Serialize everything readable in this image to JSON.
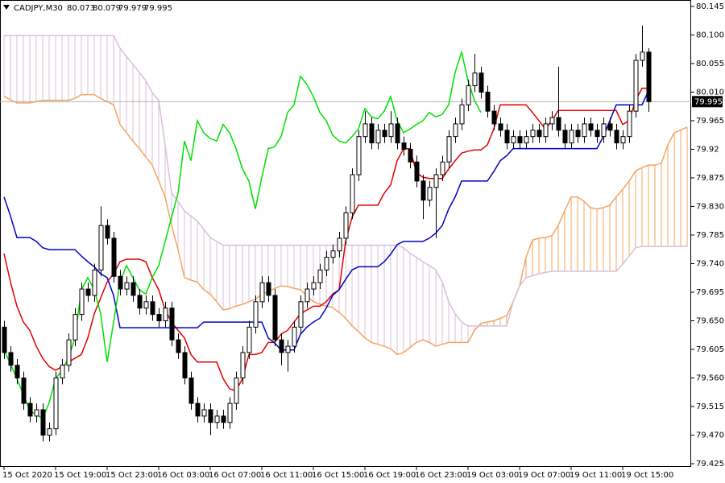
{
  "chart_data": {
    "type": "candlestick",
    "symbol": "CADJPY,M30",
    "ylim": [
      79.42,
      80.155
    ],
    "yticks": [
      80.145,
      {
        "value": 80.1,
        "label": "80.100"
      },
      80.055,
      {
        "value": 80.01,
        "label": "80.010"
      },
      79.965,
      79.92,
      79.875,
      {
        "value": 79.83,
        "label": "79.830"
      },
      79.785,
      {
        "value": 79.74,
        "label": "79.740"
      },
      79.695,
      {
        "value": 79.65,
        "label": "79.650"
      },
      79.605,
      {
        "value": 79.56,
        "label": "79.560"
      },
      79.515,
      {
        "value": 79.47,
        "label": "79.470"
      },
      79.425
    ],
    "categories": [
      "15 Oct 2020",
      null,
      null,
      null,
      null,
      null,
      null,
      null,
      "15 Oct 19:00",
      null,
      null,
      null,
      null,
      null,
      null,
      null,
      "15 Oct 23:00",
      null,
      null,
      null,
      null,
      null,
      null,
      null,
      "16 Oct 03:00",
      null,
      null,
      null,
      null,
      null,
      null,
      null,
      "16 Oct 07:00",
      null,
      null,
      null,
      null,
      null,
      null,
      null,
      "16 Oct 11:00",
      null,
      null,
      null,
      null,
      null,
      null,
      null,
      "16 Oct 15:00",
      null,
      null,
      null,
      null,
      null,
      null,
      null,
      "16 Oct 19:00",
      null,
      null,
      null,
      null,
      null,
      null,
      null,
      "16 Oct 23:00",
      null,
      null,
      null,
      null,
      null,
      null,
      null,
      "19 Oct 03:00",
      null,
      null,
      null,
      null,
      null,
      null,
      null,
      "19 Oct 07:00",
      null,
      null,
      null,
      null,
      null,
      null,
      null,
      "19 Oct 11:00",
      null,
      null,
      null,
      null,
      null,
      null,
      null,
      "19 Oct 15:00",
      null,
      null,
      null,
      null,
      null,
      null,
      null,
      null,
      null,
      null
    ],
    "candle_colors": {
      "up": "#ffffff",
      "down": "#000000",
      "outline": "#000000"
    },
    "last_price_line": true,
    "candles": [
      [
        79.64,
        79.65,
        79.59,
        79.6
      ],
      [
        79.6,
        79.61,
        79.57,
        79.58
      ],
      [
        79.58,
        79.59,
        79.55,
        79.56
      ],
      [
        79.56,
        79.57,
        79.51,
        79.52
      ],
      [
        79.52,
        79.53,
        79.49,
        79.5
      ],
      [
        79.5,
        79.52,
        79.49,
        79.51
      ],
      [
        79.51,
        79.52,
        79.46,
        79.47
      ],
      [
        79.47,
        79.49,
        79.46,
        79.48
      ],
      [
        79.48,
        79.57,
        79.47,
        79.56
      ],
      [
        79.56,
        79.59,
        79.55,
        79.58
      ],
      [
        79.58,
        79.63,
        79.57,
        79.62
      ],
      [
        79.62,
        79.67,
        79.61,
        79.66
      ],
      [
        79.66,
        79.71,
        79.65,
        79.7
      ],
      [
        79.7,
        79.71,
        79.68,
        79.69
      ],
      [
        79.69,
        79.74,
        79.68,
        79.73
      ],
      [
        79.73,
        79.83,
        79.72,
        79.8
      ],
      [
        79.8,
        79.81,
        79.77,
        79.78
      ],
      [
        79.78,
        79.79,
        79.71,
        79.72
      ],
      [
        79.72,
        79.73,
        79.69,
        79.7
      ],
      [
        79.7,
        79.72,
        79.69,
        79.71
      ],
      [
        79.71,
        79.72,
        79.68,
        79.69
      ],
      [
        79.69,
        79.7,
        79.66,
        79.67
      ],
      [
        79.67,
        79.69,
        79.66,
        79.68
      ],
      [
        79.68,
        79.69,
        79.65,
        79.66
      ],
      [
        79.66,
        79.67,
        79.64,
        79.65
      ],
      [
        79.65,
        79.68,
        79.64,
        79.67
      ],
      [
        79.67,
        79.68,
        79.61,
        79.62
      ],
      [
        79.62,
        79.63,
        79.59,
        79.6
      ],
      [
        79.6,
        79.61,
        79.55,
        79.56
      ],
      [
        79.56,
        79.57,
        79.51,
        79.52
      ],
      [
        79.52,
        79.53,
        79.49,
        79.5
      ],
      [
        79.5,
        79.52,
        79.49,
        79.51
      ],
      [
        79.51,
        79.52,
        79.47,
        79.49
      ],
      [
        79.49,
        79.51,
        79.48,
        79.5
      ],
      [
        79.5,
        79.51,
        79.48,
        79.49
      ],
      [
        79.49,
        79.53,
        79.48,
        79.52
      ],
      [
        79.52,
        79.57,
        79.51,
        79.56
      ],
      [
        79.56,
        79.61,
        79.55,
        79.6
      ],
      [
        79.6,
        79.65,
        79.59,
        79.64
      ],
      [
        79.64,
        79.69,
        79.63,
        79.68
      ],
      [
        79.68,
        79.72,
        79.67,
        79.71
      ],
      [
        79.71,
        79.72,
        79.68,
        79.69
      ],
      [
        79.69,
        79.7,
        79.61,
        79.62
      ],
      [
        79.62,
        79.63,
        79.58,
        79.6
      ],
      [
        79.6,
        79.62,
        79.57,
        79.61
      ],
      [
        79.61,
        79.65,
        79.6,
        79.64
      ],
      [
        79.64,
        79.69,
        79.63,
        79.68
      ],
      [
        79.68,
        79.71,
        79.67,
        79.7
      ],
      [
        79.7,
        79.72,
        79.69,
        79.71
      ],
      [
        79.71,
        79.74,
        79.7,
        79.73
      ],
      [
        79.73,
        79.76,
        79.72,
        79.75
      ],
      [
        79.75,
        79.77,
        79.74,
        79.76
      ],
      [
        79.76,
        79.79,
        79.75,
        79.78
      ],
      [
        79.78,
        79.83,
        79.77,
        79.82
      ],
      [
        79.82,
        79.89,
        79.81,
        79.88
      ],
      [
        79.88,
        79.95,
        79.87,
        79.94
      ],
      [
        79.94,
        79.98,
        79.93,
        79.96
      ],
      [
        79.96,
        79.97,
        79.92,
        79.93
      ],
      [
        79.93,
        79.96,
        79.92,
        79.95
      ],
      [
        79.95,
        79.96,
        79.93,
        79.94
      ],
      [
        79.94,
        79.98,
        79.93,
        79.96
      ],
      [
        79.96,
        79.97,
        79.92,
        79.93
      ],
      [
        79.93,
        79.94,
        79.91,
        79.92
      ],
      [
        79.92,
        79.93,
        79.89,
        79.9
      ],
      [
        79.9,
        79.91,
        79.86,
        79.87
      ],
      [
        79.87,
        79.88,
        79.81,
        79.84
      ],
      [
        79.84,
        79.87,
        79.83,
        79.86
      ],
      [
        79.86,
        79.89,
        79.78,
        79.88
      ],
      [
        79.88,
        79.91,
        79.87,
        79.9
      ],
      [
        79.9,
        79.95,
        79.89,
        79.94
      ],
      [
        79.94,
        79.97,
        79.93,
        79.96
      ],
      [
        79.96,
        80.0,
        79.95,
        79.99
      ],
      [
        79.99,
        80.03,
        79.98,
        80.02
      ],
      [
        80.02,
        80.07,
        80.01,
        80.04
      ],
      [
        80.04,
        80.05,
        80.0,
        80.01
      ],
      [
        80.01,
        80.02,
        79.97,
        79.98
      ],
      [
        79.98,
        79.99,
        79.95,
        79.96
      ],
      [
        79.96,
        79.97,
        79.94,
        79.95
      ],
      [
        79.95,
        79.96,
        79.92,
        79.93
      ],
      [
        79.93,
        79.95,
        79.92,
        79.94
      ],
      [
        79.94,
        79.95,
        79.92,
        79.93
      ],
      [
        79.93,
        79.95,
        79.92,
        79.94
      ],
      [
        79.94,
        79.96,
        79.93,
        79.95
      ],
      [
        79.95,
        79.96,
        79.93,
        79.94
      ],
      [
        79.94,
        79.97,
        79.93,
        79.96
      ],
      [
        79.96,
        79.98,
        79.95,
        79.97
      ],
      [
        79.97,
        80.05,
        79.94,
        79.95
      ],
      [
        79.95,
        79.96,
        79.92,
        79.93
      ],
      [
        79.93,
        79.96,
        79.92,
        79.95
      ],
      [
        79.95,
        79.96,
        79.93,
        79.94
      ],
      [
        79.94,
        79.97,
        79.93,
        79.96
      ],
      [
        79.96,
        79.97,
        79.94,
        79.95
      ],
      [
        79.95,
        79.96,
        79.93,
        79.94
      ],
      [
        79.94,
        79.97,
        79.93,
        79.96
      ],
      [
        79.96,
        79.97,
        79.94,
        79.95
      ],
      [
        79.95,
        79.96,
        79.92,
        79.93
      ],
      [
        79.93,
        79.95,
        79.92,
        79.94
      ],
      [
        79.94,
        79.99,
        79.93,
        79.98
      ],
      [
        79.98,
        80.07,
        79.97,
        80.06
      ],
      [
        80.06,
        80.115,
        80.05,
        80.073
      ],
      [
        80.073,
        80.079,
        79.979,
        79.995
      ],
      null,
      null,
      null,
      null,
      null,
      null
    ],
    "lines": [
      {
        "color": "#e00000",
        "values": [
          79.756,
          79.711,
          79.673,
          79.648,
          79.635,
          79.61,
          79.591,
          79.578,
          79.572,
          79.578,
          79.585,
          79.591,
          79.597,
          79.623,
          79.661,
          79.686,
          79.711,
          79.724,
          79.743,
          79.747,
          79.747,
          79.747,
          79.743,
          79.718,
          79.699,
          79.667,
          79.648,
          79.635,
          79.623,
          79.597,
          79.585,
          79.585,
          79.585,
          79.585,
          79.559,
          79.543,
          79.54,
          79.559,
          79.597,
          79.597,
          79.6,
          79.616,
          79.616,
          79.629,
          79.635,
          79.648,
          79.661,
          79.667,
          79.673,
          79.673,
          79.68,
          79.692,
          79.699,
          79.775,
          79.813,
          79.832,
          79.832,
          79.832,
          79.832,
          79.851,
          79.864,
          79.902,
          79.921,
          79.921,
          79.883,
          79.876,
          79.874,
          79.874,
          79.874,
          79.889,
          79.902,
          79.914,
          79.917,
          79.919,
          79.919,
          79.927,
          79.952,
          79.99,
          79.99,
          79.99,
          79.99,
          79.99,
          79.978,
          79.965,
          79.952,
          79.965,
          79.981,
          79.981,
          79.981,
          79.981,
          79.981,
          79.981,
          79.981,
          79.981,
          79.981,
          79.981,
          79.959,
          79.965,
          79.997,
          80.016,
          80.016,
          null,
          null,
          null,
          null,
          null,
          null
        ]
      },
      {
        "color": "#0000c8",
        "values": [
          79.845,
          79.815,
          79.781,
          79.781,
          79.781,
          79.775,
          79.765,
          79.762,
          79.762,
          79.762,
          79.762,
          79.762,
          79.752,
          79.743,
          79.735,
          79.724,
          79.718,
          79.69,
          79.639,
          79.639,
          79.639,
          79.639,
          79.639,
          79.639,
          79.639,
          79.639,
          79.639,
          79.639,
          79.639,
          79.639,
          79.639,
          79.648,
          79.648,
          79.648,
          79.648,
          79.648,
          79.648,
          79.648,
          79.648,
          79.648,
          79.648,
          79.623,
          79.615,
          79.604,
          79.604,
          79.604,
          79.629,
          79.64,
          79.648,
          79.654,
          79.67,
          79.69,
          79.699,
          79.715,
          79.73,
          79.735,
          79.735,
          79.735,
          79.735,
          79.743,
          79.755,
          79.77,
          79.775,
          79.775,
          79.775,
          79.775,
          79.78,
          79.788,
          79.8,
          79.826,
          79.845,
          79.87,
          79.87,
          79.87,
          79.87,
          79.87,
          79.885,
          79.902,
          79.91,
          79.921,
          79.921,
          79.921,
          79.921,
          79.921,
          79.921,
          79.921,
          79.921,
          79.921,
          79.921,
          79.921,
          79.921,
          79.921,
          79.921,
          79.94,
          79.965,
          79.99,
          79.99,
          79.99,
          79.99,
          79.99,
          80.012,
          null,
          null,
          null,
          null,
          null,
          null
        ]
      },
      {
        "color": "#00e000",
        "values": [
          79.604,
          79.582,
          79.559,
          79.534,
          79.509,
          79.502,
          79.496,
          79.521,
          79.559,
          79.572,
          79.591,
          79.623,
          79.699,
          79.718,
          79.699,
          79.661,
          79.585,
          79.648,
          79.711,
          79.737,
          79.718,
          79.699,
          79.692,
          79.718,
          79.737,
          79.775,
          79.813,
          79.851,
          79.933,
          79.902,
          79.965,
          79.946,
          79.937,
          79.933,
          79.959,
          79.946,
          79.921,
          79.889,
          79.87,
          79.826,
          79.876,
          79.921,
          79.924,
          79.94,
          79.978,
          79.99,
          80.035,
          80.022,
          80.003,
          79.978,
          79.965,
          79.942,
          79.933,
          79.93,
          79.94,
          79.952,
          79.984,
          79.971,
          79.968,
          79.98,
          80.003,
          79.965,
          79.946,
          79.952,
          79.959,
          79.965,
          79.978,
          79.971,
          79.975,
          79.99,
          80.041,
          80.073,
          80.028,
          79.997,
          79.978,
          null,
          null,
          null,
          null,
          null,
          null,
          null,
          null,
          null,
          null,
          null,
          null,
          null,
          null,
          null,
          null,
          null,
          null,
          null,
          null,
          null,
          null,
          null,
          null,
          null,
          null,
          null,
          null,
          null,
          null,
          null,
          null
        ]
      }
    ],
    "cloud": {
      "span_a": {
        "color": "#f4a460",
        "values": [
          80.003,
          79.998,
          79.993,
          79.993,
          79.993,
          79.995,
          79.997,
          79.997,
          79.997,
          79.997,
          79.997,
          80.0,
          80.006,
          80.006,
          80.006,
          80.0,
          79.995,
          79.99,
          79.959,
          79.946,
          79.933,
          79.921,
          79.908,
          79.895,
          79.87,
          79.845,
          79.8,
          79.762,
          79.718,
          79.714,
          79.711,
          79.699,
          79.692,
          79.68,
          79.667,
          79.669,
          79.673,
          79.676,
          79.68,
          79.684,
          79.692,
          79.696,
          79.701,
          79.705,
          79.704,
          79.701,
          79.699,
          79.689,
          79.68,
          79.676,
          79.673,
          79.671,
          79.663,
          79.654,
          79.642,
          79.633,
          79.623,
          79.616,
          79.613,
          79.61,
          79.606,
          79.597,
          79.6,
          79.608,
          79.616,
          79.62,
          79.616,
          79.61,
          79.613,
          79.616,
          79.616,
          79.616,
          79.616,
          79.635,
          79.646,
          79.648,
          79.65,
          79.654,
          79.658,
          79.68,
          79.705,
          79.75,
          79.777,
          79.78,
          79.781,
          79.784,
          79.8,
          79.823,
          79.845,
          79.845,
          79.838,
          79.828,
          79.826,
          79.828,
          79.832,
          79.845,
          79.857,
          79.87,
          79.886,
          79.891,
          79.895,
          79.895,
          79.898,
          79.927,
          79.946,
          79.95,
          79.955
        ]
      },
      "span_b": {
        "color": "#d8bfd8",
        "values": [
          80.099,
          80.099,
          80.099,
          80.099,
          80.099,
          80.099,
          80.099,
          80.099,
          80.099,
          80.099,
          80.099,
          80.099,
          80.099,
          80.099,
          80.099,
          80.099,
          80.099,
          80.099,
          80.079,
          80.066,
          80.054,
          80.041,
          80.028,
          80.009,
          79.997,
          79.927,
          79.851,
          79.838,
          79.823,
          79.815,
          79.807,
          79.794,
          79.781,
          79.775,
          79.769,
          79.769,
          79.769,
          79.769,
          79.769,
          79.769,
          79.769,
          79.769,
          79.769,
          79.769,
          79.769,
          79.769,
          79.769,
          79.769,
          79.769,
          79.769,
          79.769,
          79.769,
          79.769,
          79.769,
          79.769,
          79.769,
          79.769,
          79.769,
          79.769,
          79.769,
          79.769,
          79.769,
          79.765,
          79.756,
          79.75,
          79.743,
          79.737,
          79.73,
          79.711,
          79.68,
          79.661,
          79.648,
          79.642,
          79.642,
          79.642,
          79.642,
          79.642,
          79.642,
          79.642,
          79.68,
          79.705,
          79.718,
          79.721,
          79.724,
          79.726,
          79.728,
          79.728,
          79.728,
          79.728,
          79.728,
          79.728,
          79.728,
          79.728,
          79.728,
          79.728,
          79.728,
          79.739,
          79.752,
          79.765,
          79.767,
          79.767,
          79.767,
          79.767,
          79.767,
          79.767,
          79.767,
          79.767
        ]
      }
    }
  }
}
